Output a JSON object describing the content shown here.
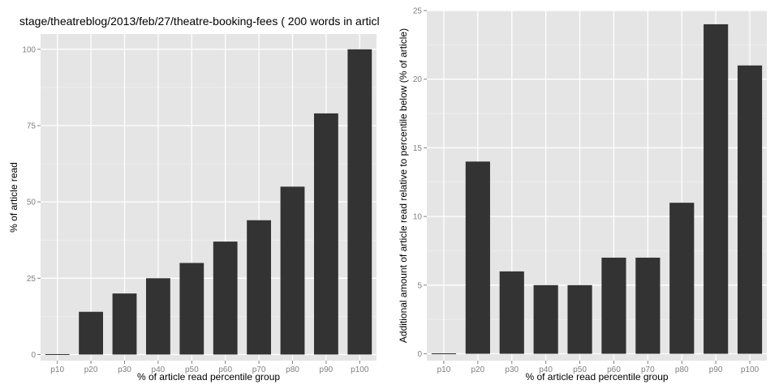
{
  "colors": {
    "panel_background": "#e5e5e5",
    "grid_major": "#ffffff",
    "grid_minor": "#f2f2f2",
    "bar_fill": "#333333",
    "tick_text": "#7f7f7f",
    "title_text": "#000000"
  },
  "chart_data": [
    {
      "type": "bar",
      "title": "stage/theatreblog/2013/feb/27/theatre-booking-fees ( 200 words in articl",
      "xlabel": "% of article read percentile group",
      "ylabel": "% of article read",
      "categories": [
        "p10",
        "p20",
        "p30",
        "p40",
        "p50",
        "p60",
        "p70",
        "p80",
        "p90",
        "p100"
      ],
      "values": [
        0,
        14,
        20,
        25,
        30,
        37,
        44,
        55,
        79,
        100
      ],
      "ylim": [
        -2,
        105
      ],
      "yticks": [
        0,
        25,
        50,
        75,
        100
      ],
      "ytick_labels": [
        "0",
        "25",
        "50",
        "75",
        "100"
      ],
      "grid": true
    },
    {
      "type": "bar",
      "title": "",
      "xlabel": "% of article read percentile group",
      "ylabel": "Additional amount of article read relative to percentile below (% of article)",
      "categories": [
        "p10",
        "p20",
        "p30",
        "p40",
        "p50",
        "p60",
        "p70",
        "p80",
        "p90",
        "p100"
      ],
      "values": [
        0,
        14,
        6,
        5,
        5,
        7,
        7,
        11,
        24,
        21
      ],
      "ylim": [
        -0.5,
        25
      ],
      "yticks": [
        0,
        5,
        10,
        15,
        20,
        25
      ],
      "ytick_labels": [
        "0",
        "5",
        "10",
        "15",
        "20",
        "25"
      ],
      "grid": true
    }
  ]
}
